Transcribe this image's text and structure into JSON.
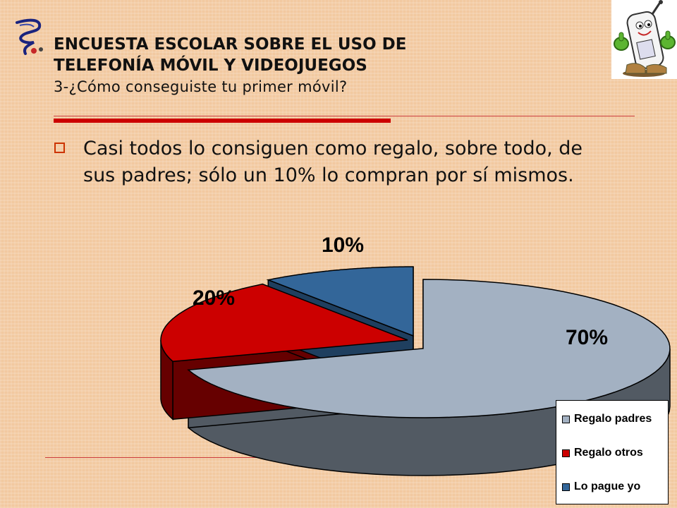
{
  "header": {
    "title_line1": "ENCUESTA ESCOLAR SOBRE EL USO DE",
    "title_line2": "TELEFONÍA MÓVIL Y VIDEOJUEGOS",
    "subtitle": "3-¿Cómo conseguiste tu primer móvil?"
  },
  "body": {
    "bullet": "Casi todos lo consiguen como regalo, sobre todo, de sus padres; sólo un 10% lo compran por sí mismos."
  },
  "decor": {
    "logo_icon": "swirl-logo-icon",
    "mascot_icon": "cellphone-mascot-thumbs-up-icon"
  },
  "chart_data": {
    "type": "pie",
    "style": "3d-exploded",
    "categories": [
      "Regalo padres",
      "Regalo otros",
      "Lo pague yo"
    ],
    "values": [
      70,
      20,
      10
    ],
    "data_labels": [
      "70%",
      "20%",
      "10%"
    ],
    "colors": [
      "#a3b1c2",
      "#cc0000",
      "#336699"
    ],
    "side_colors": [
      "#525a63",
      "#660000",
      "#1f3f5f"
    ],
    "legend_position": "bottom-right"
  }
}
